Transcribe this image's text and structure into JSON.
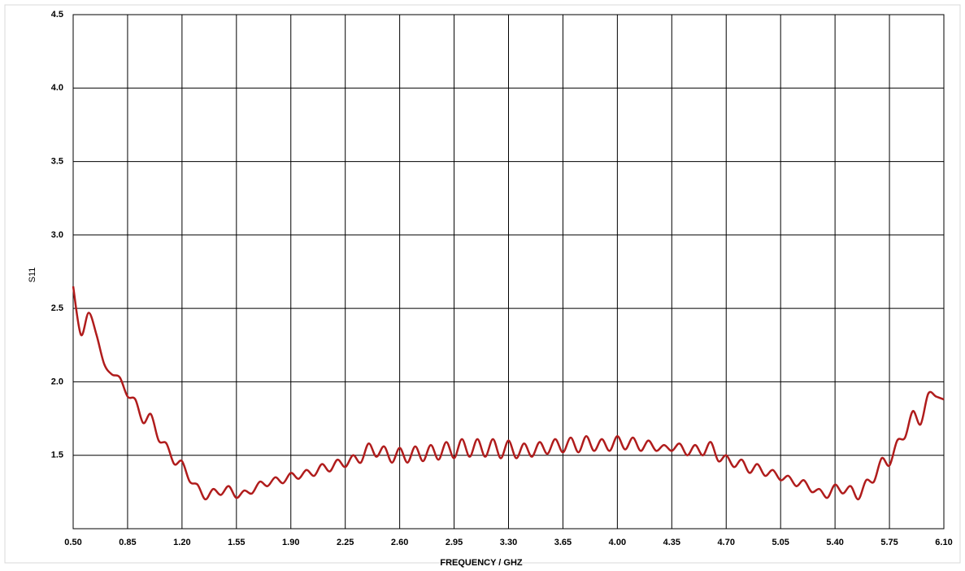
{
  "chart_data": {
    "type": "line",
    "x_label": "FREQUENCY / GHZ",
    "y_label": "S11",
    "x": [
      0.5,
      0.55,
      0.6,
      0.65,
      0.7,
      0.75,
      0.8,
      0.85,
      0.9,
      0.95,
      1.0,
      1.05,
      1.1,
      1.15,
      1.2,
      1.25,
      1.3,
      1.35,
      1.4,
      1.45,
      1.5,
      1.55,
      1.6,
      1.65,
      1.7,
      1.75,
      1.8,
      1.85,
      1.9,
      1.95,
      2.0,
      2.05,
      2.1,
      2.15,
      2.2,
      2.25,
      2.3,
      2.35,
      2.4,
      2.45,
      2.5,
      2.55,
      2.6,
      2.65,
      2.7,
      2.75,
      2.8,
      2.85,
      2.9,
      2.95,
      3.0,
      3.05,
      3.1,
      3.15,
      3.2,
      3.25,
      3.3,
      3.35,
      3.4,
      3.45,
      3.5,
      3.55,
      3.6,
      3.65,
      3.7,
      3.75,
      3.8,
      3.85,
      3.9,
      3.95,
      4.0,
      4.05,
      4.1,
      4.15,
      4.2,
      4.25,
      4.3,
      4.35,
      4.4,
      4.45,
      4.5,
      4.55,
      4.6,
      4.65,
      4.7,
      4.75,
      4.8,
      4.85,
      4.9,
      4.95,
      5.0,
      5.05,
      5.1,
      5.15,
      5.2,
      5.25,
      5.3,
      5.35,
      5.4,
      5.45,
      5.5,
      5.55,
      5.6,
      5.65,
      5.7,
      5.75,
      5.8,
      5.85,
      5.9,
      5.95,
      6.0,
      6.05,
      6.1
    ],
    "series": [
      {
        "name": "S11",
        "color": "#b01c1c",
        "values": [
          2.65,
          2.32,
          2.47,
          2.32,
          2.12,
          2.05,
          2.03,
          1.9,
          1.88,
          1.72,
          1.78,
          1.6,
          1.58,
          1.44,
          1.46,
          1.32,
          1.3,
          1.2,
          1.27,
          1.23,
          1.29,
          1.21,
          1.26,
          1.24,
          1.32,
          1.29,
          1.35,
          1.31,
          1.38,
          1.34,
          1.4,
          1.36,
          1.44,
          1.39,
          1.47,
          1.42,
          1.5,
          1.45,
          1.58,
          1.49,
          1.56,
          1.45,
          1.55,
          1.45,
          1.56,
          1.46,
          1.57,
          1.47,
          1.59,
          1.48,
          1.61,
          1.49,
          1.61,
          1.49,
          1.61,
          1.48,
          1.6,
          1.48,
          1.58,
          1.49,
          1.59,
          1.51,
          1.61,
          1.52,
          1.62,
          1.52,
          1.63,
          1.53,
          1.61,
          1.53,
          1.63,
          1.54,
          1.62,
          1.53,
          1.6,
          1.53,
          1.57,
          1.53,
          1.58,
          1.5,
          1.57,
          1.5,
          1.59,
          1.46,
          1.5,
          1.42,
          1.47,
          1.38,
          1.44,
          1.36,
          1.4,
          1.33,
          1.36,
          1.29,
          1.33,
          1.25,
          1.27,
          1.21,
          1.3,
          1.24,
          1.29,
          1.2,
          1.33,
          1.32,
          1.48,
          1.43,
          1.6,
          1.62,
          1.8,
          1.71,
          1.92,
          1.9,
          1.88
        ]
      }
    ],
    "xlim": [
      0.5,
      6.1
    ],
    "xticks": [
      {
        "value": 0.5,
        "label": "0.50"
      },
      0.85,
      {
        "value": 1.2,
        "label": "1.20"
      },
      1.55,
      {
        "value": 1.9,
        "label": "1.90"
      },
      2.25,
      {
        "value": 2.6,
        "label": "2.60"
      },
      2.95,
      {
        "value": 3.3,
        "label": "3.30"
      },
      3.65,
      {
        "value": 4,
        "label": "4.00"
      },
      4.35,
      {
        "value": 4.7,
        "label": "4.70"
      },
      5.05,
      {
        "value": 5.4,
        "label": "5.40"
      },
      5.75,
      {
        "value": 6.1,
        "label": "6.10"
      }
    ],
    "ylim": [
      1.0,
      4.5
    ],
    "yticks": [
      1.5,
      {
        "value": 2,
        "label": "2.0"
      },
      2.5,
      {
        "value": 3,
        "label": "3.0"
      },
      3.5,
      {
        "value": 4,
        "label": "4.0"
      },
      4.5
    ],
    "grid": true
  }
}
